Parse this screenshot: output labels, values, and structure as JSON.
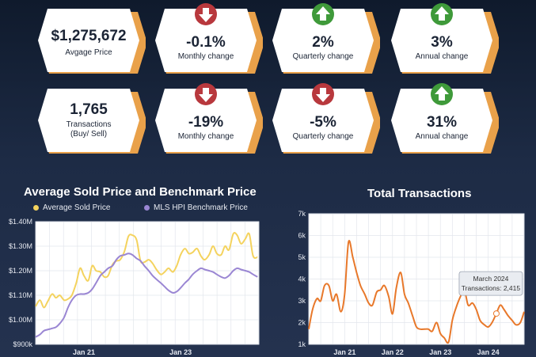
{
  "kpis": [
    {
      "value": "$1,275,672",
      "label": "Avgage Price",
      "label2": "",
      "icon": "none"
    },
    {
      "value": "-0.1%",
      "label": "Monthly change",
      "label2": "",
      "icon": "down"
    },
    {
      "value": "2%",
      "label": "Quarterly change",
      "label2": "",
      "icon": "up"
    },
    {
      "value": "3%",
      "label": "Annual change",
      "label2": "",
      "icon": "up"
    },
    {
      "value": "1,765",
      "label": "Transactions",
      "label2": "(Buy/ Sell)",
      "icon": "none"
    },
    {
      "value": "-19%",
      "label": "Monthly change",
      "label2": "",
      "icon": "down"
    },
    {
      "value": "-5%",
      "label": "Quarterly change",
      "label2": "",
      "icon": "down"
    },
    {
      "value": "31%",
      "label": "Annual change",
      "label2": "",
      "icon": "up"
    }
  ],
  "colors": {
    "card_face": "#ffffff",
    "card_edge": "#e9a14a",
    "up": "#3f9a3a",
    "down": "#b8383d",
    "avg_line": "#f4d35e",
    "hpi_line": "#9a86d3",
    "tx_line": "#e8782a"
  },
  "chart_data": [
    {
      "type": "line",
      "title": "Average Sold Price and Benchmark Price",
      "legend": [
        "Average Sold Price",
        "MLS HPI Benchmark Price"
      ],
      "yticks": [
        "$900k",
        "$1.00M",
        "$1.10M",
        "$1.20M",
        "$1.30M",
        "$1.40M"
      ],
      "xticks": [
        "Jan 21",
        "Jan 23"
      ],
      "ylim": [
        900,
        1400
      ],
      "xlim": [
        2020.08,
        2024.7
      ],
      "series": [
        {
          "name": "Average Sold Price",
          "x": [
            2020.08,
            2020.17,
            2020.25,
            2020.33,
            2020.42,
            2020.5,
            2020.58,
            2020.67,
            2020.75,
            2020.83,
            2020.92,
            2021.0,
            2021.08,
            2021.17,
            2021.25,
            2021.33,
            2021.42,
            2021.5,
            2021.58,
            2021.67,
            2021.75,
            2021.83,
            2021.92,
            2022.0,
            2022.08,
            2022.17,
            2022.25,
            2022.33,
            2022.42,
            2022.5,
            2022.58,
            2022.67,
            2022.75,
            2022.83,
            2022.92,
            2023.0,
            2023.08,
            2023.17,
            2023.25,
            2023.33,
            2023.42,
            2023.5,
            2023.58,
            2023.67,
            2023.75,
            2023.83,
            2023.92,
            2024.0,
            2024.08,
            2024.17,
            2024.25,
            2024.33,
            2024.42,
            2024.5,
            2024.58,
            2024.67
          ],
          "y": [
            1055,
            1080,
            1050,
            1075,
            1105,
            1090,
            1100,
            1080,
            1085,
            1100,
            1150,
            1210,
            1180,
            1160,
            1220,
            1200,
            1195,
            1175,
            1180,
            1225,
            1240,
            1245,
            1280,
            1340,
            1345,
            1325,
            1240,
            1235,
            1245,
            1230,
            1205,
            1185,
            1195,
            1210,
            1195,
            1220,
            1265,
            1290,
            1270,
            1275,
            1290,
            1260,
            1245,
            1265,
            1300,
            1270,
            1265,
            1300,
            1285,
            1350,
            1345,
            1310,
            1330,
            1350,
            1260,
            1255
          ]
        },
        {
          "name": "MLS HPI Benchmark Price",
          "x": [
            2020.08,
            2020.17,
            2020.25,
            2020.33,
            2020.42,
            2020.5,
            2020.58,
            2020.67,
            2020.75,
            2020.83,
            2020.92,
            2021.0,
            2021.08,
            2021.17,
            2021.25,
            2021.33,
            2021.42,
            2021.5,
            2021.58,
            2021.67,
            2021.75,
            2021.83,
            2021.92,
            2022.0,
            2022.08,
            2022.17,
            2022.25,
            2022.33,
            2022.42,
            2022.5,
            2022.58,
            2022.67,
            2022.75,
            2022.83,
            2022.92,
            2023.0,
            2023.08,
            2023.17,
            2023.25,
            2023.33,
            2023.42,
            2023.5,
            2023.58,
            2023.67,
            2023.75,
            2023.83,
            2023.92,
            2024.0,
            2024.08,
            2024.17,
            2024.25,
            2024.33,
            2024.42,
            2024.5,
            2024.58,
            2024.67
          ],
          "y": [
            930,
            940,
            955,
            960,
            965,
            970,
            985,
            1010,
            1050,
            1080,
            1100,
            1105,
            1105,
            1110,
            1125,
            1150,
            1180,
            1195,
            1210,
            1220,
            1245,
            1260,
            1265,
            1270,
            1265,
            1250,
            1240,
            1220,
            1200,
            1180,
            1165,
            1150,
            1135,
            1120,
            1110,
            1115,
            1130,
            1150,
            1165,
            1185,
            1200,
            1210,
            1205,
            1200,
            1195,
            1185,
            1175,
            1170,
            1180,
            1200,
            1210,
            1205,
            1200,
            1195,
            1185,
            1175
          ]
        }
      ]
    },
    {
      "type": "line",
      "title": "Total Transactions",
      "yticks": [
        "1k",
        "2k",
        "3k",
        "4k",
        "5k",
        "6k",
        "7k"
      ],
      "xticks": [
        "Jan 21",
        "Jan 22",
        "Jan 23",
        "Jan 24"
      ],
      "ylim": [
        1000,
        7000
      ],
      "xlim": [
        2020.25,
        2024.75
      ],
      "annotation": {
        "line1": "March 2024",
        "line2": "Transactions: 2,415",
        "x": 2024.17,
        "y": 2415
      },
      "series": [
        {
          "name": "",
          "x": [
            2020.25,
            2020.33,
            2020.42,
            2020.5,
            2020.58,
            2020.67,
            2020.75,
            2020.83,
            2020.92,
            2021.0,
            2021.08,
            2021.17,
            2021.25,
            2021.33,
            2021.42,
            2021.5,
            2021.58,
            2021.67,
            2021.75,
            2021.83,
            2021.92,
            2022.0,
            2022.08,
            2022.17,
            2022.25,
            2022.33,
            2022.42,
            2022.5,
            2022.58,
            2022.67,
            2022.75,
            2022.83,
            2022.92,
            2023.0,
            2023.08,
            2023.17,
            2023.25,
            2023.33,
            2023.42,
            2023.5,
            2023.58,
            2023.67,
            2023.75,
            2023.83,
            2023.92,
            2024.0,
            2024.08,
            2024.17,
            2024.25,
            2024.33,
            2024.42,
            2024.5,
            2024.58,
            2024.67,
            2024.75
          ],
          "y": [
            1700,
            2600,
            3100,
            3000,
            3700,
            3700,
            3000,
            3300,
            2500,
            3300,
            5700,
            5000,
            4300,
            3700,
            3300,
            2900,
            2800,
            3400,
            3500,
            3700,
            3200,
            2400,
            3600,
            4300,
            3300,
            2900,
            2300,
            1800,
            1700,
            1700,
            1700,
            1600,
            2000,
            1500,
            1300,
            1100,
            2100,
            2700,
            3200,
            3500,
            2800,
            2900,
            2600,
            2100,
            1900,
            1800,
            2000,
            2415,
            2800,
            2600,
            2300,
            2100,
            1900,
            2000,
            2500
          ]
        }
      ]
    }
  ]
}
